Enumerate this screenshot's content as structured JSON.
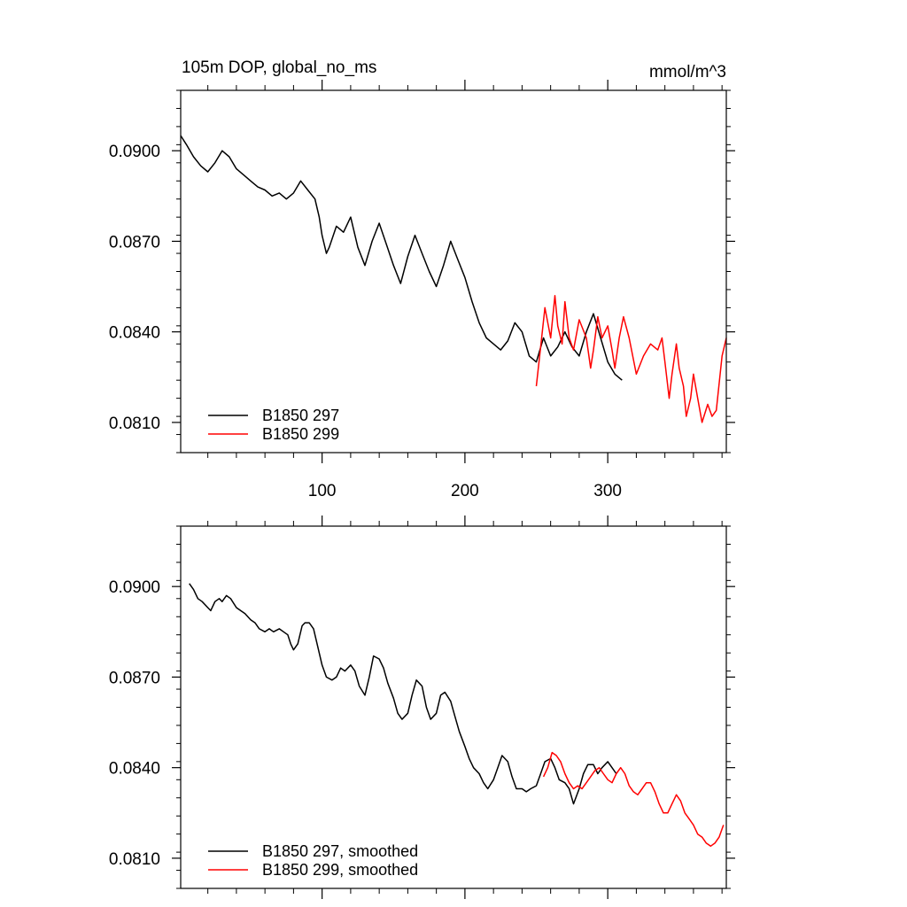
{
  "colors": {
    "series1": "#000000",
    "series2": "#ff0000"
  },
  "chart_data": [
    {
      "type": "line",
      "title_left": "105m DOP, global_no_ms",
      "title_right": "mmol/m^3",
      "xlim": [
        1,
        383
      ],
      "ylim": [
        0.08,
        0.092
      ],
      "xticks": [
        100,
        200,
        300
      ],
      "yticks": [
        0.081,
        0.084,
        0.087,
        0.09
      ],
      "ytick_labels": [
        "0.0810",
        "0.0840",
        "0.0870",
        "0.0900"
      ],
      "legend_position": "bottom-left",
      "series": [
        {
          "name": "B1850 297",
          "color": "#000000",
          "x": [
            1,
            5,
            10,
            15,
            20,
            25,
            30,
            35,
            40,
            45,
            50,
            55,
            60,
            65,
            70,
            75,
            80,
            85,
            90,
            95,
            98,
            100,
            103,
            105,
            110,
            115,
            120,
            125,
            130,
            135,
            140,
            145,
            150,
            155,
            160,
            165,
            170,
            175,
            180,
            185,
            190,
            195,
            200,
            205,
            210,
            215,
            220,
            225,
            230,
            235,
            240,
            245,
            250,
            255,
            260,
            265,
            270,
            275,
            280,
            285,
            290,
            295,
            300,
            305,
            310
          ],
          "y": [
            0.0905,
            0.0902,
            0.0898,
            0.0895,
            0.0893,
            0.0896,
            0.09,
            0.0898,
            0.0894,
            0.0892,
            0.089,
            0.0888,
            0.0887,
            0.0885,
            0.0886,
            0.0884,
            0.0886,
            0.089,
            0.0887,
            0.0884,
            0.0878,
            0.0872,
            0.0866,
            0.0868,
            0.0875,
            0.0873,
            0.0878,
            0.0868,
            0.0862,
            0.087,
            0.0876,
            0.0869,
            0.0862,
            0.0856,
            0.0865,
            0.0872,
            0.0866,
            0.086,
            0.0855,
            0.0862,
            0.087,
            0.0864,
            0.0858,
            0.085,
            0.0843,
            0.0838,
            0.0836,
            0.0834,
            0.0837,
            0.0843,
            0.084,
            0.0832,
            0.083,
            0.0838,
            0.0832,
            0.0835,
            0.084,
            0.0835,
            0.0832,
            0.084,
            0.0846,
            0.0838,
            0.083,
            0.0826,
            0.0824
          ]
        },
        {
          "name": "B1850 299",
          "color": "#ff0000",
          "x": [
            250,
            253,
            256,
            260,
            263,
            265,
            268,
            270,
            273,
            276,
            280,
            285,
            288,
            290,
            293,
            296,
            300,
            303,
            305,
            308,
            311,
            315,
            320,
            325,
            330,
            335,
            338,
            340,
            343,
            345,
            348,
            350,
            353,
            355,
            358,
            360,
            363,
            366,
            370,
            373,
            376,
            380,
            383
          ],
          "y": [
            0.0822,
            0.0835,
            0.0848,
            0.0838,
            0.0852,
            0.0842,
            0.0836,
            0.085,
            0.0838,
            0.0834,
            0.0844,
            0.0838,
            0.0828,
            0.0834,
            0.0845,
            0.0838,
            0.0842,
            0.0834,
            0.0828,
            0.0838,
            0.0845,
            0.0838,
            0.0826,
            0.0832,
            0.0836,
            0.0834,
            0.0838,
            0.083,
            0.0818,
            0.0826,
            0.0836,
            0.0828,
            0.0822,
            0.0812,
            0.0818,
            0.0826,
            0.0818,
            0.081,
            0.0816,
            0.0812,
            0.0814,
            0.0832,
            0.0838
          ]
        }
      ]
    },
    {
      "type": "line",
      "xlim": [
        1,
        383
      ],
      "ylim": [
        0.08,
        0.092
      ],
      "xticks": [
        100,
        200,
        300
      ],
      "yticks": [
        0.081,
        0.084,
        0.087,
        0.09
      ],
      "ytick_labels": [
        "0.0810",
        "0.0840",
        "0.0870",
        "0.0900"
      ],
      "legend_position": "bottom-left",
      "series": [
        {
          "name": "B1850 297, smoothed",
          "color": "#000000",
          "x": [
            7,
            10,
            13,
            16,
            20,
            22,
            25,
            28,
            30,
            33,
            36,
            40,
            43,
            46,
            50,
            53,
            56,
            60,
            63,
            66,
            70,
            73,
            76,
            78,
            80,
            83,
            86,
            88,
            91,
            94,
            97,
            100,
            103,
            107,
            110,
            113,
            116,
            120,
            123,
            126,
            130,
            133,
            136,
            140,
            143,
            146,
            150,
            153,
            156,
            160,
            163,
            166,
            170,
            173,
            176,
            180,
            183,
            186,
            190,
            193,
            196,
            200,
            203,
            206,
            210,
            213,
            216,
            220,
            223,
            226,
            230,
            233,
            236,
            240,
            243,
            246,
            250,
            253,
            256,
            260,
            263,
            266,
            270,
            273,
            276,
            280,
            283,
            286,
            290,
            293,
            296,
            300,
            303,
            306
          ],
          "y": [
            0.0901,
            0.0899,
            0.0896,
            0.0895,
            0.0893,
            0.0892,
            0.0895,
            0.0896,
            0.0895,
            0.0897,
            0.0896,
            0.0893,
            0.0892,
            0.0891,
            0.0889,
            0.0888,
            0.0886,
            0.0885,
            0.0886,
            0.0885,
            0.0886,
            0.0885,
            0.0884,
            0.0881,
            0.0879,
            0.0881,
            0.0887,
            0.0888,
            0.0888,
            0.0886,
            0.088,
            0.0874,
            0.087,
            0.0869,
            0.087,
            0.0873,
            0.0872,
            0.0874,
            0.0872,
            0.0867,
            0.0864,
            0.087,
            0.0877,
            0.0876,
            0.0873,
            0.0868,
            0.0863,
            0.0858,
            0.0856,
            0.0858,
            0.0864,
            0.0869,
            0.0867,
            0.086,
            0.0856,
            0.0858,
            0.0864,
            0.0865,
            0.0862,
            0.0857,
            0.0852,
            0.0847,
            0.0843,
            0.084,
            0.0838,
            0.0835,
            0.0833,
            0.0836,
            0.084,
            0.0844,
            0.0842,
            0.0837,
            0.0833,
            0.0833,
            0.0832,
            0.0833,
            0.0834,
            0.0838,
            0.0842,
            0.0843,
            0.084,
            0.0836,
            0.0835,
            0.0833,
            0.0828,
            0.0833,
            0.0838,
            0.0841,
            0.0841,
            0.0838,
            0.084,
            0.0842,
            0.084,
            0.0838
          ]
        },
        {
          "name": "B1850 299, smoothed",
          "color": "#ff0000",
          "x": [
            255,
            258,
            261,
            264,
            267,
            270,
            273,
            276,
            279,
            282,
            285,
            288,
            291,
            294,
            297,
            300,
            303,
            306,
            309,
            312,
            315,
            318,
            321,
            324,
            327,
            330,
            333,
            336,
            339,
            342,
            345,
            348,
            351,
            354,
            357,
            360,
            363,
            366,
            369,
            372,
            375,
            378,
            381
          ],
          "y": [
            0.0837,
            0.084,
            0.0845,
            0.0844,
            0.0842,
            0.0838,
            0.0835,
            0.0833,
            0.0834,
            0.0833,
            0.0835,
            0.0837,
            0.0839,
            0.084,
            0.0838,
            0.0836,
            0.0835,
            0.0838,
            0.084,
            0.0838,
            0.0834,
            0.0832,
            0.0831,
            0.0833,
            0.0835,
            0.0835,
            0.0832,
            0.0828,
            0.0825,
            0.0825,
            0.0828,
            0.0831,
            0.0829,
            0.0825,
            0.0823,
            0.0821,
            0.0818,
            0.0817,
            0.0815,
            0.0814,
            0.0815,
            0.0817,
            0.0821
          ]
        }
      ]
    }
  ]
}
